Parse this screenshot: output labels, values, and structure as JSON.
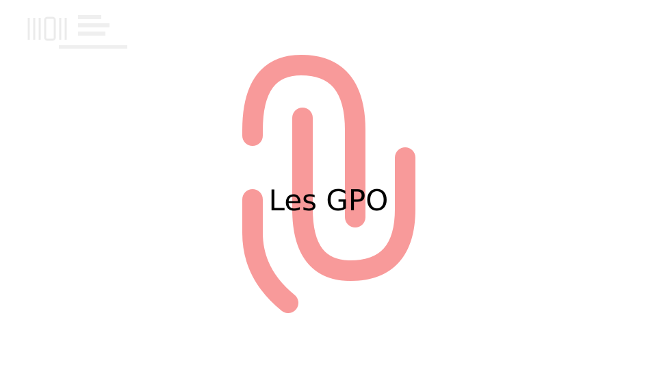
{
  "slide": {
    "title": "Les GPO"
  },
  "graphic": {
    "icon": "paperclip-icon",
    "color": "#f89a9a"
  },
  "logo": {
    "icon": "brand-logo-icon",
    "color": "#e8e8e8"
  }
}
